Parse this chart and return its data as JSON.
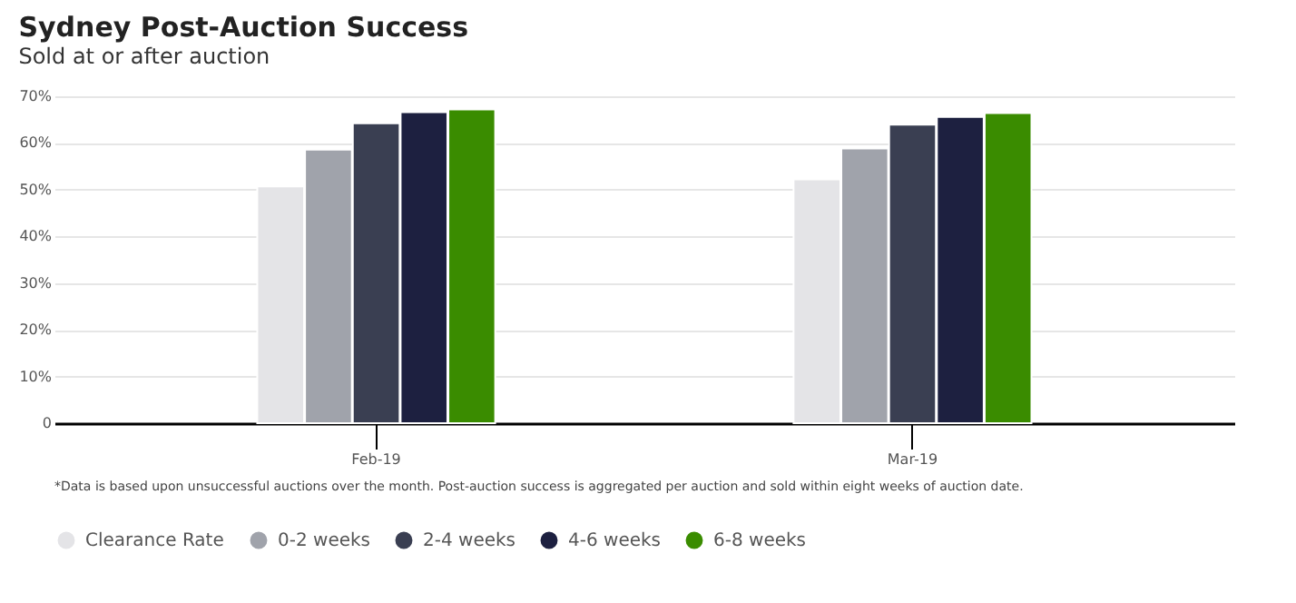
{
  "chart_data": {
    "type": "bar",
    "title": "Sydney Post-Auction Success",
    "subtitle": "Sold at or after auction",
    "categories": [
      "Feb-19",
      "Mar-19"
    ],
    "series": [
      {
        "name": "Clearance Rate",
        "color": "#e4e4e7",
        "values": [
          50.7,
          52.2
        ]
      },
      {
        "name": "0-2 weeks",
        "color": "#a0a3ab",
        "values": [
          58.6,
          58.8
        ]
      },
      {
        "name": "2-4 weeks",
        "color": "#3a3f52",
        "values": [
          64.2,
          63.9
        ]
      },
      {
        "name": "4-6 weeks",
        "color": "#1d2040",
        "values": [
          66.6,
          65.6
        ]
      },
      {
        "name": "6-8 weeks",
        "color": "#3a8c00",
        "values": [
          67.2,
          66.4
        ]
      }
    ],
    "ylim": [
      0,
      70
    ],
    "yticks": [
      0,
      {
        "value": 10,
        "label": "10%"
      },
      {
        "value": 20,
        "label": "20%"
      },
      {
        "value": 30,
        "label": "30%"
      },
      {
        "value": 40,
        "label": "40%"
      },
      {
        "value": 50,
        "label": "50%"
      },
      {
        "value": 60,
        "label": "60%"
      },
      {
        "value": 70,
        "label": "70%"
      }
    ],
    "grid": "y",
    "legend": "bottom",
    "annotations": [
      "*Data is based upon unsuccessful auctions over the month. Post-auction success is aggregated per auction and sold within eight weeks of auction date."
    ]
  }
}
